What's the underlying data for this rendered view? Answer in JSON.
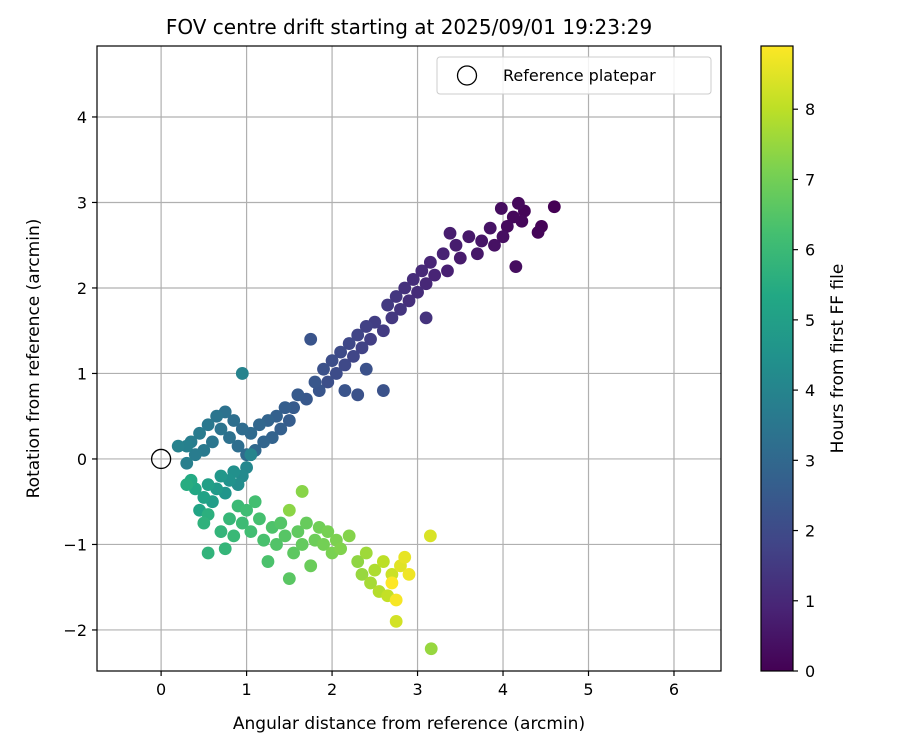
{
  "chart_data": {
    "type": "scatter",
    "title": "FOV centre drift starting at 2025/09/01 19:23:29",
    "xlabel": "Angular distance from reference (arcmin)",
    "ylabel": "Rotation from reference (arcmin)",
    "xlim": [
      -0.75,
      6.55
    ],
    "ylim": [
      -2.48,
      4.83
    ],
    "x_ticks": [
      0,
      1,
      2,
      3,
      4,
      5,
      6
    ],
    "x_tick_labels": [
      "0",
      "1",
      "2",
      "3",
      "4",
      "5",
      "6"
    ],
    "y_ticks": [
      -2,
      -1,
      0,
      1,
      2,
      3,
      4
    ],
    "y_tick_labels": [
      "−2",
      "−1",
      "0",
      "1",
      "2",
      "3",
      "4"
    ],
    "grid": true,
    "legend": {
      "placement": "top-right",
      "entries": [
        {
          "label": "Reference platepar",
          "marker": "hollow-circle"
        }
      ]
    },
    "reference_point": {
      "x": 0,
      "y": 0
    },
    "colorbar": {
      "label": "Hours from first FF file",
      "colormap": "viridis",
      "range": [
        0,
        8.9
      ],
      "ticks": [
        0,
        1,
        2,
        3,
        4,
        5,
        6,
        7,
        8
      ],
      "tick_labels": [
        "0",
        "1",
        "2",
        "3",
        "4",
        "5",
        "6",
        "7",
        "8"
      ]
    },
    "series": [
      {
        "points": [
          [
            4.6,
            2.95,
            0.0
          ],
          [
            4.45,
            2.72,
            0.05
          ],
          [
            4.41,
            2.65,
            0.1
          ],
          [
            4.25,
            2.9,
            0.1
          ],
          [
            4.22,
            2.78,
            0.15
          ],
          [
            4.18,
            2.99,
            0.2
          ],
          [
            4.12,
            2.83,
            0.2
          ],
          [
            4.05,
            2.72,
            0.25
          ],
          [
            3.98,
            2.93,
            0.3
          ],
          [
            4.15,
            2.25,
            0.3
          ],
          [
            4.0,
            2.6,
            0.35
          ],
          [
            3.9,
            2.5,
            0.4
          ],
          [
            3.85,
            2.7,
            0.45
          ],
          [
            3.75,
            2.55,
            0.5
          ],
          [
            3.7,
            2.4,
            0.55
          ],
          [
            3.6,
            2.6,
            0.6
          ],
          [
            3.5,
            2.35,
            0.65
          ],
          [
            3.45,
            2.5,
            0.7
          ],
          [
            3.38,
            2.64,
            0.7
          ],
          [
            3.35,
            2.2,
            0.8
          ],
          [
            3.3,
            2.4,
            0.85
          ],
          [
            3.2,
            2.15,
            0.9
          ],
          [
            3.15,
            2.3,
            0.95
          ],
          [
            3.1,
            2.05,
            1.0
          ],
          [
            3.05,
            2.2,
            1.05
          ],
          [
            3.0,
            1.95,
            1.1
          ],
          [
            2.95,
            2.1,
            1.15
          ],
          [
            2.9,
            1.85,
            1.2
          ],
          [
            2.85,
            2.0,
            1.25
          ],
          [
            3.1,
            1.65,
            1.3
          ],
          [
            2.8,
            1.75,
            1.35
          ],
          [
            2.75,
            1.9,
            1.4
          ],
          [
            2.7,
            1.65,
            1.45
          ],
          [
            2.65,
            1.8,
            1.5
          ],
          [
            2.6,
            1.5,
            1.55
          ],
          [
            2.5,
            1.6,
            1.6
          ],
          [
            2.45,
            1.4,
            1.65
          ],
          [
            2.4,
            1.55,
            1.7
          ],
          [
            2.35,
            1.3,
            1.75
          ],
          [
            2.3,
            1.45,
            1.8
          ],
          [
            2.25,
            1.2,
            1.85
          ],
          [
            2.2,
            1.35,
            1.9
          ],
          [
            2.15,
            1.1,
            1.95
          ],
          [
            2.1,
            1.25,
            2.0
          ],
          [
            2.05,
            1.0,
            2.05
          ],
          [
            2.0,
            1.15,
            2.1
          ],
          [
            1.95,
            0.9,
            2.15
          ],
          [
            1.9,
            1.05,
            2.2
          ],
          [
            2.4,
            1.05,
            2.2
          ],
          [
            2.6,
            0.8,
            2.25
          ],
          [
            2.3,
            0.75,
            2.25
          ],
          [
            2.15,
            0.8,
            2.3
          ],
          [
            1.85,
            0.8,
            2.35
          ],
          [
            1.75,
            1.4,
            2.3
          ],
          [
            1.8,
            0.9,
            2.4
          ],
          [
            1.7,
            0.7,
            2.45
          ],
          [
            1.6,
            0.75,
            2.5
          ],
          [
            1.55,
            0.6,
            2.55
          ],
          [
            1.5,
            0.45,
            2.6
          ],
          [
            1.45,
            0.6,
            2.65
          ],
          [
            1.4,
            0.35,
            2.7
          ],
          [
            1.35,
            0.5,
            2.75
          ],
          [
            1.3,
            0.25,
            2.8
          ],
          [
            1.25,
            0.45,
            2.85
          ],
          [
            1.2,
            0.2,
            2.9
          ],
          [
            1.15,
            0.4,
            2.95
          ],
          [
            1.1,
            0.1,
            3.0
          ],
          [
            1.05,
            0.3,
            3.05
          ],
          [
            1.0,
            0.05,
            3.1
          ],
          [
            0.95,
            0.35,
            3.15
          ],
          [
            0.9,
            0.15,
            3.2
          ],
          [
            0.85,
            0.45,
            3.25
          ],
          [
            0.8,
            0.25,
            3.3
          ],
          [
            0.75,
            0.55,
            3.35
          ],
          [
            0.7,
            0.35,
            3.4
          ],
          [
            0.65,
            0.5,
            3.45
          ],
          [
            0.6,
            0.2,
            3.5
          ],
          [
            0.55,
            0.4,
            3.55
          ],
          [
            0.5,
            0.1,
            3.6
          ],
          [
            0.45,
            0.3,
            3.65
          ],
          [
            0.4,
            0.05,
            3.7
          ],
          [
            0.35,
            0.2,
            3.75
          ],
          [
            0.3,
            -0.05,
            3.8
          ],
          [
            0.3,
            0.15,
            3.85
          ],
          [
            0.2,
            0.15,
            3.9
          ],
          [
            0.95,
            1.0,
            3.95
          ],
          [
            1.05,
            0.05,
            4.0
          ],
          [
            1.0,
            -0.1,
            4.1
          ],
          [
            0.95,
            -0.2,
            4.2
          ],
          [
            0.9,
            -0.3,
            4.3
          ],
          [
            0.85,
            -0.15,
            4.4
          ],
          [
            0.8,
            -0.25,
            4.5
          ],
          [
            0.75,
            -0.4,
            4.6
          ],
          [
            0.7,
            -0.2,
            4.7
          ],
          [
            0.65,
            -0.35,
            4.8
          ],
          [
            0.6,
            -0.5,
            4.9
          ],
          [
            0.55,
            -0.3,
            5.0
          ],
          [
            0.5,
            -0.45,
            5.1
          ],
          [
            0.45,
            -0.6,
            5.2
          ],
          [
            0.4,
            -0.35,
            5.3
          ],
          [
            0.35,
            -0.25,
            5.4
          ],
          [
            0.3,
            -0.3,
            5.5
          ],
          [
            0.55,
            -0.65,
            5.6
          ],
          [
            0.5,
            -0.75,
            5.7
          ],
          [
            0.55,
            -1.1,
            5.75
          ],
          [
            0.7,
            -0.85,
            5.8
          ],
          [
            0.75,
            -1.05,
            5.85
          ],
          [
            0.8,
            -0.7,
            5.9
          ],
          [
            0.85,
            -0.9,
            5.95
          ],
          [
            0.9,
            -0.55,
            6.0
          ],
          [
            0.95,
            -0.75,
            6.05
          ],
          [
            1.0,
            -0.6,
            6.1
          ],
          [
            1.05,
            -0.85,
            6.15
          ],
          [
            1.1,
            -0.5,
            6.2
          ],
          [
            1.15,
            -0.7,
            6.25
          ],
          [
            1.2,
            -0.95,
            6.3
          ],
          [
            1.25,
            -1.2,
            6.35
          ],
          [
            1.3,
            -0.8,
            6.4
          ],
          [
            1.35,
            -1.0,
            6.45
          ],
          [
            1.4,
            -0.75,
            6.5
          ],
          [
            1.45,
            -0.9,
            6.55
          ],
          [
            1.5,
            -1.4,
            6.6
          ],
          [
            1.55,
            -1.1,
            6.65
          ],
          [
            1.6,
            -0.85,
            6.7
          ],
          [
            1.65,
            -1.0,
            6.75
          ],
          [
            1.7,
            -0.75,
            6.8
          ],
          [
            1.75,
            -1.25,
            6.85
          ],
          [
            1.8,
            -0.95,
            6.9
          ],
          [
            1.85,
            -0.8,
            6.95
          ],
          [
            1.9,
            -1.0,
            7.0
          ],
          [
            1.95,
            -0.85,
            7.05
          ],
          [
            2.0,
            -1.1,
            7.1
          ],
          [
            2.05,
            -0.95,
            7.15
          ],
          [
            2.1,
            -1.05,
            7.2
          ],
          [
            2.2,
            -0.9,
            7.25
          ],
          [
            1.65,
            -0.38,
            7.3
          ],
          [
            1.5,
            -0.6,
            7.35
          ],
          [
            2.3,
            -1.2,
            7.4
          ],
          [
            2.35,
            -1.35,
            7.5
          ],
          [
            2.4,
            -1.1,
            7.6
          ],
          [
            2.45,
            -1.45,
            7.7
          ],
          [
            2.5,
            -1.3,
            7.8
          ],
          [
            2.55,
            -1.55,
            7.9
          ],
          [
            2.6,
            -1.2,
            8.0
          ],
          [
            2.65,
            -1.6,
            8.1
          ],
          [
            2.7,
            -1.35,
            8.2
          ],
          [
            2.75,
            -1.9,
            8.3
          ],
          [
            3.16,
            -2.22,
            7.5
          ],
          [
            3.15,
            -0.9,
            8.4
          ],
          [
            2.8,
            -1.25,
            8.5
          ],
          [
            2.85,
            -1.15,
            8.6
          ],
          [
            2.9,
            -1.35,
            8.7
          ],
          [
            2.75,
            -1.65,
            8.8
          ],
          [
            2.7,
            -1.45,
            8.9
          ]
        ]
      }
    ]
  }
}
